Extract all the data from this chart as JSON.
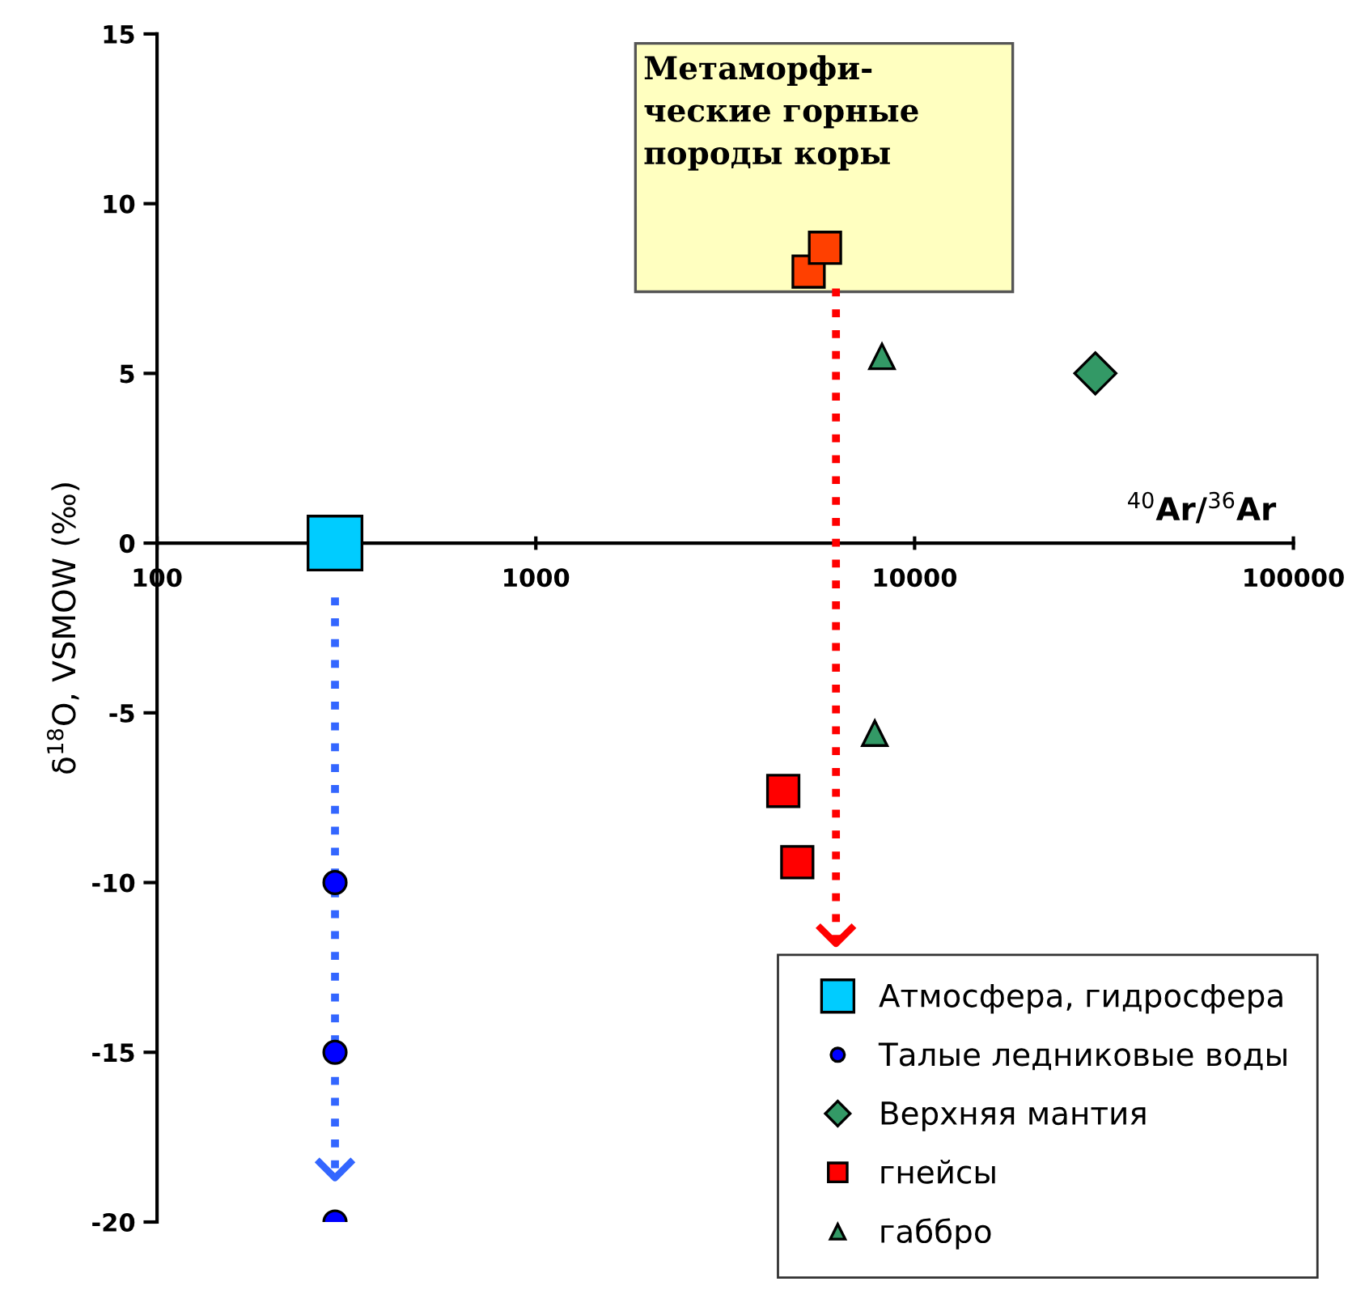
{
  "chart_data": {
    "type": "scatter",
    "xlabel": "$^{40}$Ar/$^{36}$Ar",
    "ylabel": "δ$^{18}$O, VSMOW (‰)",
    "log": "x",
    "xlim": [
      100,
      100000
    ],
    "xticks": [
      100,
      1000,
      10000,
      100000
    ],
    "ylim": [
      -20,
      15
    ],
    "yticks": [
      -20,
      -15,
      -10,
      -5,
      0,
      5,
      10,
      15
    ],
    "grid": false,
    "legend": "bottom right",
    "annotations": [
      "Метаморфи-\nческие горные\nпороды коры"
    ],
    "series": [
      {
        "name": "Атмосфера, гидросфера",
        "color": "#00ccff",
        "marker": "square",
        "x": [
          295
        ],
        "values": [
          0
        ]
      },
      {
        "name": "Талые ледниковые воды",
        "color": "#0000ff",
        "marker": "circle",
        "x": [
          295,
          295,
          295
        ],
        "values": [
          -10,
          -15,
          -20
        ]
      },
      {
        "name": "Верхняя мантия",
        "color": "#339966",
        "marker": "diamond",
        "x": [
          30000
        ],
        "values": [
          5
        ]
      },
      {
        "name": "гнейсы",
        "color": "#ff0000",
        "marker": "square",
        "x": [
          4500,
          4900
        ],
        "values": [
          -7.3,
          -9.4
        ]
      },
      {
        "name": "габбро",
        "color": "#339966",
        "marker": "triangle",
        "x": [
          8200,
          7850
        ],
        "values": [
          5.5,
          -5.6
        ]
      },
      {
        "color": "#ff4000",
        "marker": "square",
        "x": [
          5250,
          5800
        ],
        "values": [
          8.0,
          8.7
        ]
      },
      {
        "type": "line",
        "color": "#3366ff",
        "line_style": "dotted",
        "marker": "none",
        "x": [
          295,
          295
        ],
        "values": [
          -1.6,
          -18.7
        ]
      },
      {
        "type": "line",
        "color": "#ff0000",
        "line_style": "dotted",
        "marker": "none",
        "x": [
          6200,
          6200
        ],
        "values": [
          7.5,
          -11.8
        ]
      }
    ]
  }
}
